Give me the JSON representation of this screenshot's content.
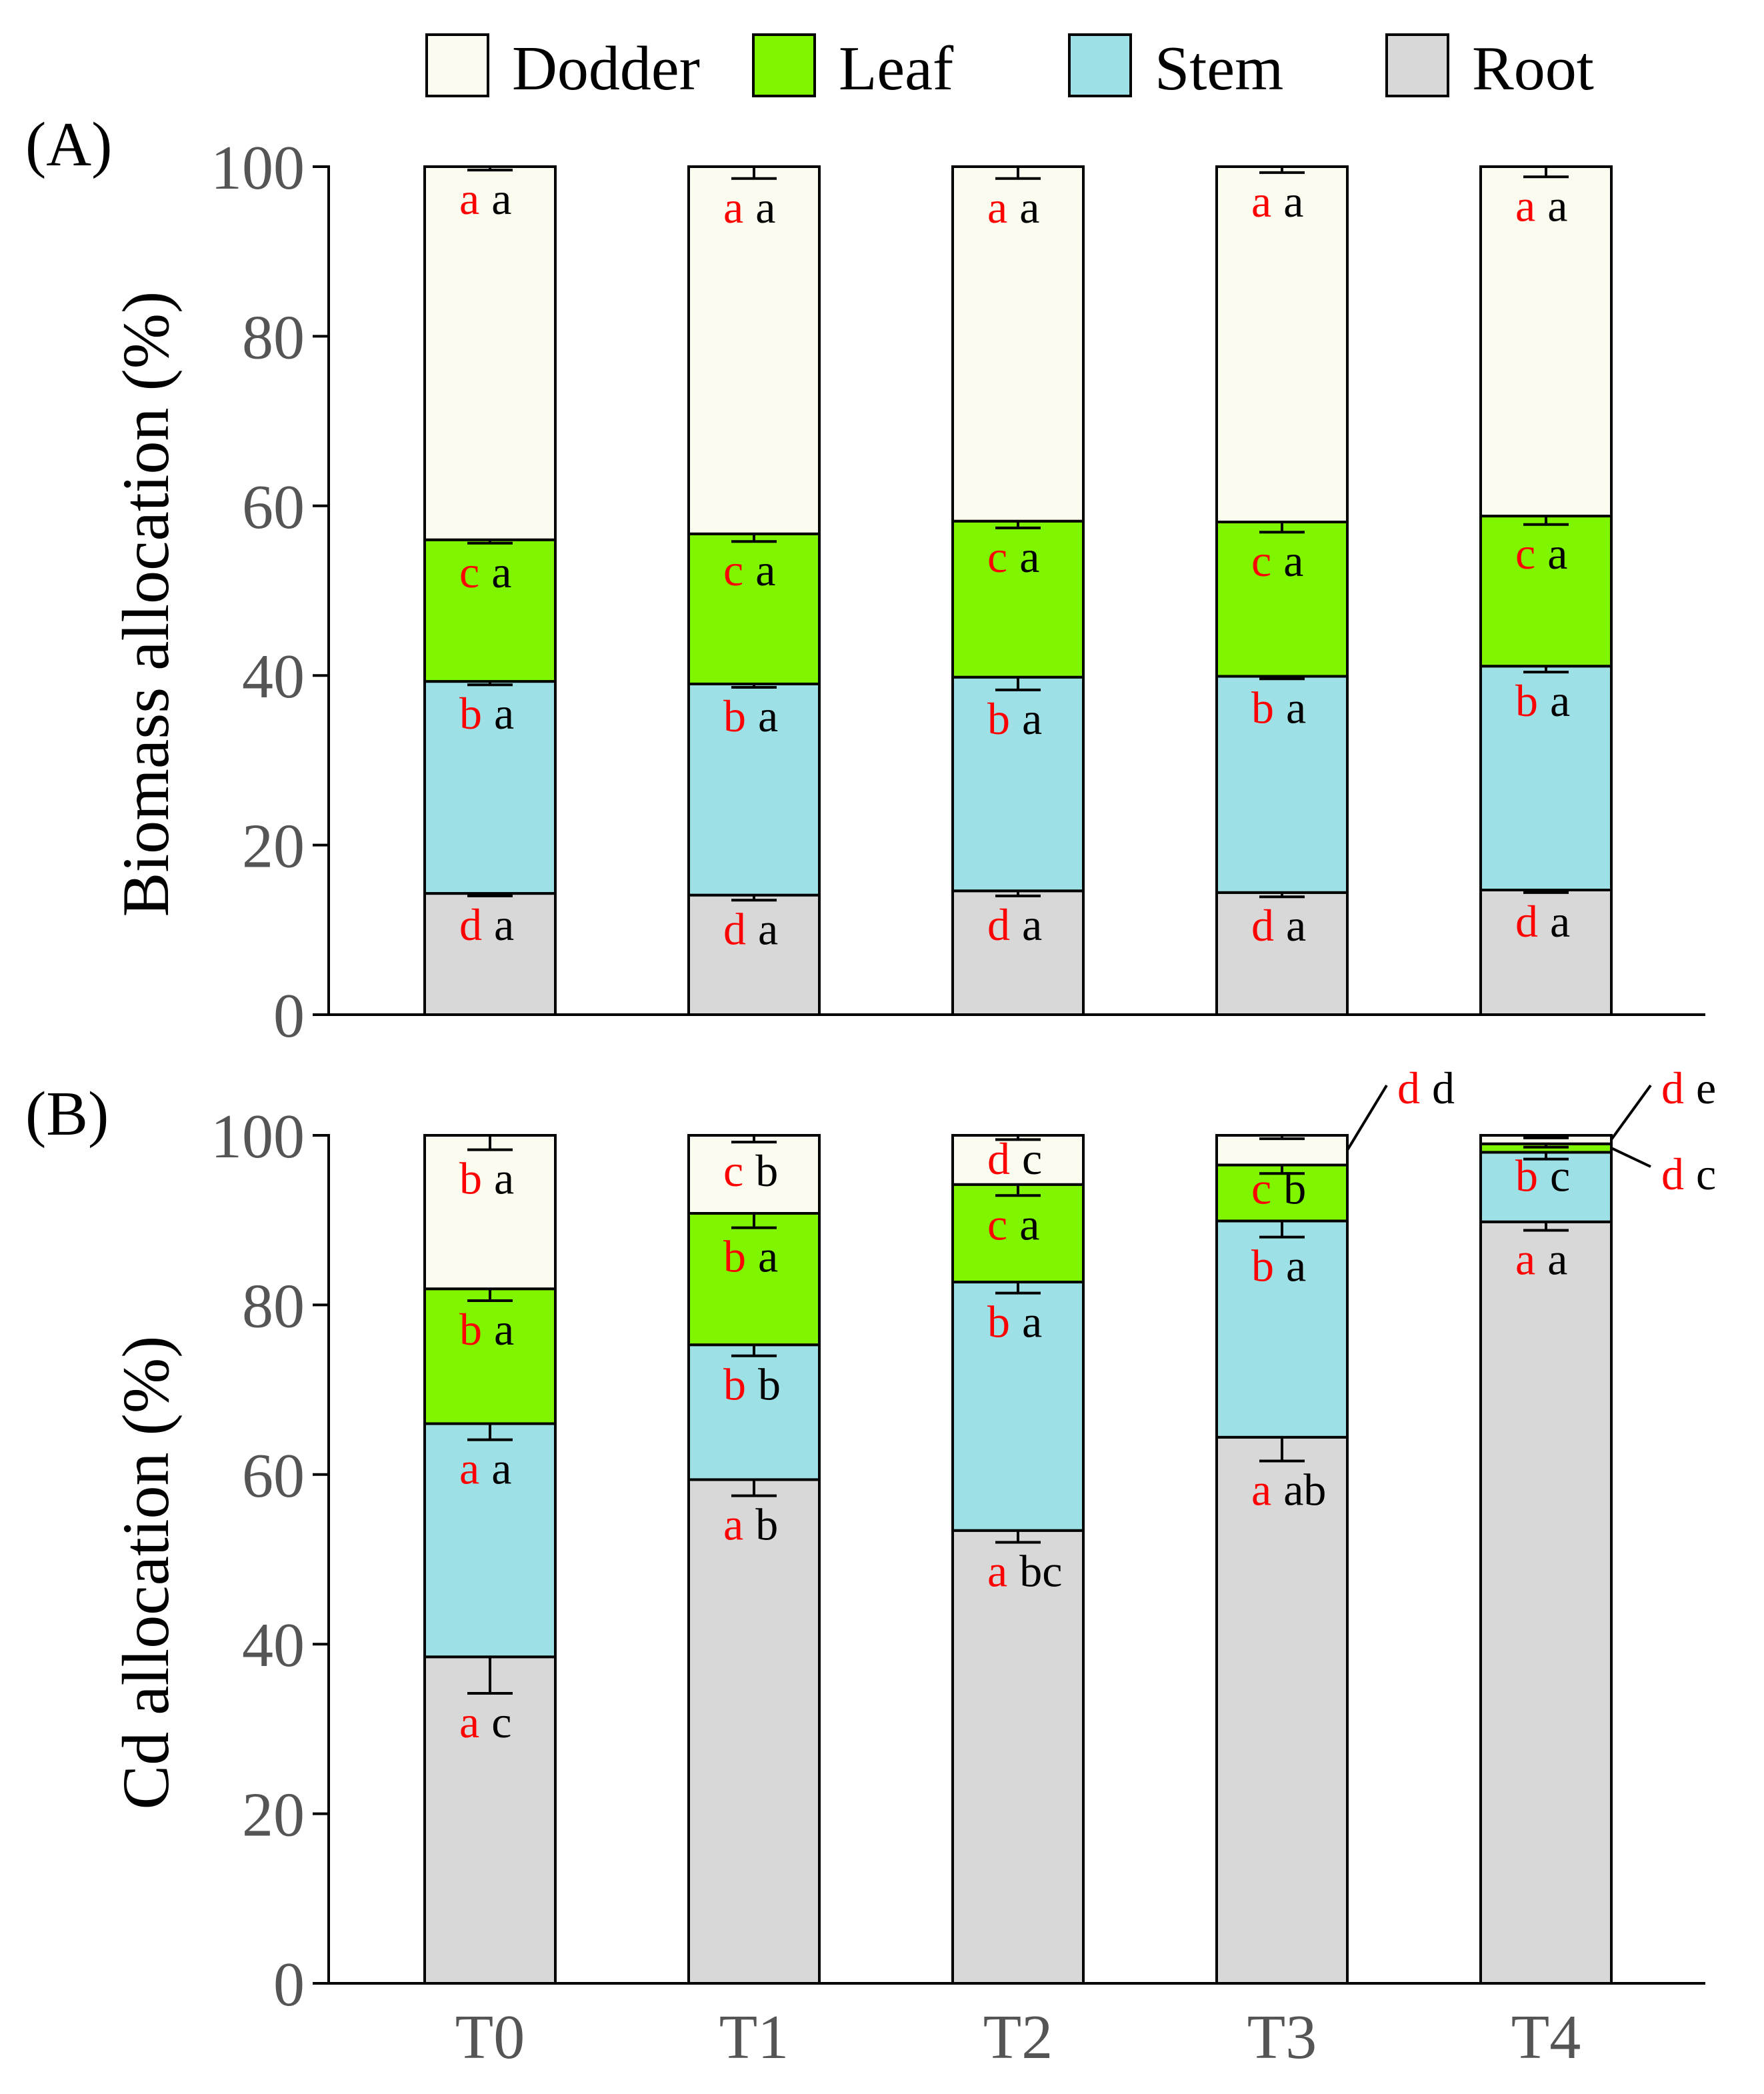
{
  "legend": {
    "items": [
      {
        "key": "dodder",
        "label": "Dodder",
        "color": "#fbfbf0"
      },
      {
        "key": "leaf",
        "label": "Leaf",
        "color": "#80f500"
      },
      {
        "key": "stem",
        "label": "Stem",
        "color": "#9de0e6"
      },
      {
        "key": "root",
        "label": "Root",
        "color": "#d8d8d8"
      }
    ]
  },
  "colors": {
    "axis": "#000000",
    "tick_text": "#555555",
    "letter_primary": "#ff0000",
    "letter_secondary": "#000000"
  },
  "chart_data": [
    {
      "type": "bar",
      "stacked": true,
      "panel_label": "(A)",
      "title": "",
      "xlabel": "",
      "ylabel": "Biomass allocation (%)",
      "ylim": [
        0,
        100
      ],
      "yticks": [
        "0",
        "20",
        "40",
        "60",
        "80",
        "100"
      ],
      "categories": [
        "T0",
        "T1",
        "T2",
        "T3",
        "T4"
      ],
      "series": [
        {
          "name": "Root",
          "values": [
            14.3,
            14.1,
            14.6,
            14.4,
            14.7
          ],
          "err": [
            0.3,
            0.6,
            0.6,
            0.5,
            0.3
          ],
          "sig": [
            [
              "d",
              "a"
            ],
            [
              "d",
              "a"
            ],
            [
              "d",
              "a"
            ],
            [
              "d",
              "a"
            ],
            [
              "d",
              "a"
            ]
          ]
        },
        {
          "name": "Stem",
          "values": [
            25.0,
            24.9,
            25.2,
            25.5,
            26.4
          ],
          "err": [
            0.4,
            0.4,
            1.5,
            0.3,
            0.7
          ],
          "sig": [
            [
              "b",
              "a"
            ],
            [
              "b",
              "a"
            ],
            [
              "b",
              "a"
            ],
            [
              "b",
              "a"
            ],
            [
              "b",
              "a"
            ]
          ]
        },
        {
          "name": "Leaf",
          "values": [
            16.7,
            17.7,
            18.4,
            18.2,
            17.7
          ],
          "err": [
            0.4,
            0.9,
            0.8,
            1.2,
            1.0
          ],
          "sig": [
            [
              "c",
              "a"
            ],
            [
              "c",
              "a"
            ],
            [
              "c",
              "a"
            ],
            [
              "c",
              "a"
            ],
            [
              "c",
              "a"
            ]
          ]
        },
        {
          "name": "Dodder",
          "values": [
            44.0,
            43.3,
            41.8,
            41.9,
            41.2
          ],
          "err": [
            0.4,
            1.4,
            1.4,
            0.7,
            1.2
          ],
          "sig": [
            [
              "a",
              "a"
            ],
            [
              "a",
              "a"
            ],
            [
              "a",
              "a"
            ],
            [
              "a",
              "a"
            ],
            [
              "a",
              "a"
            ]
          ]
        }
      ]
    },
    {
      "type": "bar",
      "stacked": true,
      "panel_label": "(B)",
      "title": "",
      "xlabel": "",
      "ylabel": "Cd allocation (%)",
      "ylim": [
        0,
        100
      ],
      "yticks": [
        "0",
        "20",
        "40",
        "60",
        "80",
        "100"
      ],
      "categories": [
        "T0",
        "T1",
        "T2",
        "T3",
        "T4"
      ],
      "series": [
        {
          "name": "Root",
          "values": [
            38.5,
            59.4,
            53.4,
            64.4,
            89.8
          ],
          "err": [
            4.3,
            1.9,
            1.4,
            2.8,
            1.0
          ],
          "sig": [
            [
              "a",
              "c"
            ],
            [
              "a",
              "b"
            ],
            [
              "a",
              "bc"
            ],
            [
              "a",
              "ab"
            ],
            [
              "a",
              "a"
            ]
          ]
        },
        {
          "name": "Stem",
          "values": [
            27.5,
            15.9,
            29.3,
            25.5,
            8.2
          ],
          "err": [
            1.9,
            1.3,
            1.3,
            1.9,
            0.8
          ],
          "sig": [
            [
              "a",
              "a"
            ],
            [
              "b",
              "b"
            ],
            [
              "b",
              "a"
            ],
            [
              "b",
              "a"
            ],
            [
              "b",
              "c"
            ]
          ]
        },
        {
          "name": "Leaf",
          "values": [
            15.9,
            15.5,
            11.5,
            6.6,
            1.0
          ],
          "err": [
            1.4,
            1.7,
            1.3,
            1.0,
            0.4
          ],
          "sig": [
            [
              "b",
              "a"
            ],
            [
              "b",
              "a"
            ],
            [
              "c",
              "a"
            ],
            [
              "c",
              "b"
            ],
            [
              "d",
              "c"
            ]
          ]
        },
        {
          "name": "Dodder",
          "values": [
            18.1,
            9.2,
            5.8,
            3.5,
            1.0
          ],
          "err": [
            1.7,
            0.8,
            0.5,
            0.4,
            0.3
          ],
          "sig": [
            [
              "b",
              "a"
            ],
            [
              "c",
              "b"
            ],
            [
              "d",
              "c"
            ],
            [
              "d",
              "d"
            ],
            [
              "d",
              "e"
            ]
          ]
        }
      ]
    }
  ]
}
